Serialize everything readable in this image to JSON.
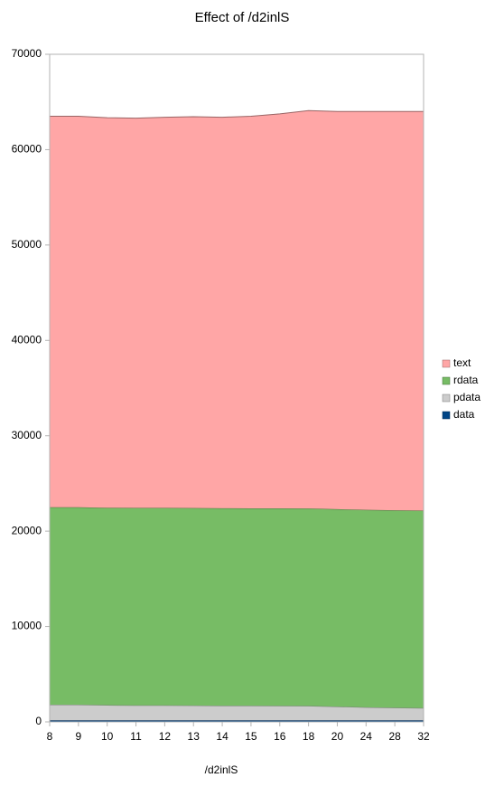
{
  "chart_data": {
    "type": "stacked_area",
    "title": "Effect of /d2inlS",
    "x_label": "/d2inlS",
    "categories": [
      "8",
      "9",
      "10",
      "11",
      "12",
      "13",
      "14",
      "15",
      "16",
      "18",
      "20",
      "24",
      "28",
      "32"
    ],
    "series": [
      {
        "name": "data",
        "color": "#004586",
        "values": [
          150,
          150,
          150,
          150,
          150,
          150,
          150,
          150,
          150,
          150,
          150,
          150,
          150,
          150
        ]
      },
      {
        "name": "pdata",
        "color": "#cccccc",
        "values": [
          1650,
          1650,
          1600,
          1580,
          1580,
          1570,
          1550,
          1540,
          1530,
          1520,
          1450,
          1380,
          1330,
          1300
        ]
      },
      {
        "name": "rdata",
        "color": "#77bc65",
        "values": [
          20700,
          20700,
          20700,
          20700,
          20700,
          20700,
          20700,
          20700,
          20700,
          20700,
          20700,
          20700,
          20700,
          20700
        ]
      },
      {
        "name": "text",
        "color": "#ffa6a6",
        "values": [
          41000,
          41000,
          40900,
          40870,
          40970,
          41030,
          41000,
          41110,
          41370,
          41730,
          41700,
          41770,
          41820,
          41850
        ]
      }
    ],
    "ylim": [
      0,
      70000
    ],
    "yticks": [
      0,
      10000,
      20000,
      30000,
      40000,
      50000,
      60000,
      70000
    ],
    "legend": "right"
  }
}
